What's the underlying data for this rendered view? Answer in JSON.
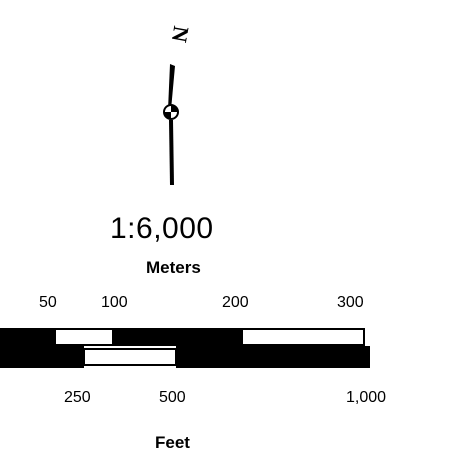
{
  "north_arrow": {
    "letter": "N",
    "icon": "north-arrow-icon"
  },
  "scale": {
    "ratio": "1:6,000"
  },
  "meters_bar": {
    "unit_label": "Meters",
    "ticks": [
      "50",
      "100",
      "200",
      "300"
    ]
  },
  "feet_bar": {
    "unit_label": "Feet",
    "ticks": [
      "250",
      "500",
      "1,000"
    ]
  },
  "colors": {
    "ink": "#000000",
    "paper": "#ffffff"
  }
}
